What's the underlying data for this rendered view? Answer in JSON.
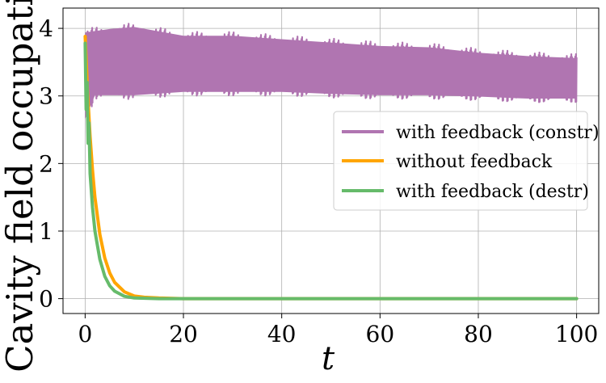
{
  "chart_data": {
    "type": "line",
    "title": "",
    "xlabel": "t",
    "ylabel": "Cavity field occupation",
    "xlim": [
      -4.5,
      104.5
    ],
    "ylim": [
      -0.22,
      4.3
    ],
    "xticks": [
      0,
      20,
      40,
      60,
      80,
      100
    ],
    "yticks": [
      0,
      1,
      2,
      3,
      4
    ],
    "grid": true,
    "legend_position": "center-right",
    "series": [
      {
        "name": "with feedback (constr)",
        "color": "#b075b1",
        "style": "fast oscillation band",
        "t": [
          0,
          2,
          5,
          10,
          20,
          30,
          40,
          50,
          60,
          70,
          80,
          90,
          100
        ],
        "upper": [
          4.0,
          4.02,
          4.05,
          4.08,
          3.95,
          3.95,
          3.9,
          3.85,
          3.8,
          3.78,
          3.7,
          3.65,
          3.62
        ],
        "lower": [
          2.6,
          2.95,
          2.95,
          2.95,
          3.0,
          3.0,
          3.0,
          2.97,
          2.95,
          2.95,
          2.93,
          2.9,
          2.9
        ]
      },
      {
        "name": "without feedback",
        "color": "#ffa500",
        "style": "line",
        "x": [
          0,
          0.5,
          1,
          1.5,
          2,
          3,
          4,
          5,
          6,
          8,
          10,
          12,
          15,
          20,
          30,
          50,
          100
        ],
        "y": [
          3.88,
          3.05,
          2.4,
          1.9,
          1.5,
          0.95,
          0.6,
          0.38,
          0.24,
          0.1,
          0.04,
          0.02,
          0.01,
          0.0,
          0.0,
          0.0,
          0.0
        ]
      },
      {
        "name": "with feedback (destr)",
        "color": "#66bb6a",
        "style": "line",
        "x": [
          0,
          0.2,
          0.4,
          0.6,
          0.8,
          1,
          1.5,
          2,
          3,
          4,
          5,
          6,
          8,
          10,
          15,
          20,
          50,
          100
        ],
        "y": [
          3.78,
          2.8,
          3.2,
          2.3,
          2.6,
          1.85,
          1.35,
          1.0,
          0.58,
          0.33,
          0.19,
          0.11,
          0.035,
          0.01,
          0.0,
          0.0,
          0.0,
          0.0
        ]
      }
    ]
  }
}
